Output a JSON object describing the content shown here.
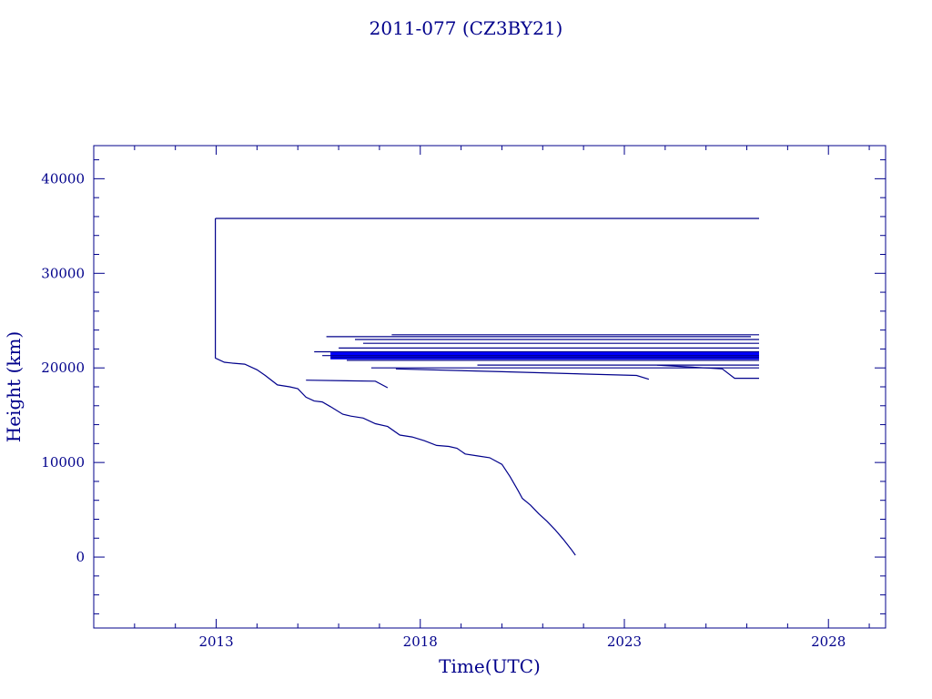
{
  "chart_data": {
    "type": "line",
    "title": "2011-077 (CZ3BY21)",
    "xlabel": "Time(UTC)",
    "ylabel": "Height (km)",
    "xlim": [
      2010.0,
      2029.4
    ],
    "ylim": [
      -7500,
      43500
    ],
    "x_ticks": [
      2013,
      2018,
      2023,
      2028
    ],
    "x_tick_labels": [
      "2013",
      "2018",
      "2023",
      "2028"
    ],
    "y_ticks": [
      0,
      10000,
      20000,
      30000,
      40000
    ],
    "y_tick_labels": [
      "0",
      "10000",
      "20000",
      "30000",
      "40000"
    ],
    "x_minor_step": 1,
    "y_minor_step": 2000,
    "grid": false,
    "line_color": "#00008b",
    "dense_color": "#0000ff",
    "series": [
      {
        "x": [
          2012.98,
          2013.0,
          2013.2,
          2013.4,
          2013.7,
          2014.0,
          2014.2,
          2014.5,
          2014.8,
          2015.0,
          2015.2,
          2015.4,
          2015.6,
          2015.8,
          2016.1,
          2016.3,
          2016.6,
          2016.9,
          2017.2,
          2017.5,
          2017.8,
          2018.1,
          2018.4,
          2018.7,
          2018.9,
          2019.1,
          2019.4,
          2019.7,
          2020.0,
          2020.2,
          2020.4,
          2020.5,
          2020.7,
          2020.9,
          2021.1,
          2021.3,
          2021.5,
          2021.7,
          2021.8
        ],
        "y": [
          21000,
          21000,
          20600,
          20500,
          20400,
          19800,
          19200,
          18200,
          18000,
          17800,
          16900,
          16500,
          16400,
          15900,
          15100,
          14900,
          14700,
          14100,
          13800,
          12900,
          12700,
          12300,
          11800,
          11700,
          11500,
          10900,
          10700,
          10500,
          9800,
          8500,
          7000,
          6200,
          5500,
          4600,
          3800,
          2900,
          1900,
          800,
          200
        ]
      },
      {
        "x": [
          2012.98,
          2012.98
        ],
        "y": [
          21000,
          35800
        ]
      },
      {
        "x": [
          2012.98,
          2026.3
        ],
        "y": [
          35800,
          35800
        ]
      },
      {
        "x": [
          2015.2,
          2016.9,
          2017.2
        ],
        "y": [
          18700,
          18600,
          17900
        ]
      },
      {
        "x": [
          2017.4,
          2020.0,
          2023.3,
          2023.6
        ],
        "y": [
          19900,
          19600,
          19200,
          18800
        ]
      },
      {
        "x": [
          2015.7,
          2026.1
        ],
        "y": [
          23300,
          23300
        ]
      },
      {
        "x": [
          2016.4,
          2026.3
        ],
        "y": [
          23000,
          23000
        ]
      },
      {
        "x": [
          2016.6,
          2026.3
        ],
        "y": [
          22600,
          22600
        ]
      },
      {
        "x": [
          2016.0,
          2026.3
        ],
        "y": [
          22100,
          22100
        ]
      },
      {
        "x": [
          2015.4,
          2026.3
        ],
        "y": [
          21700,
          21700
        ]
      },
      {
        "x": [
          2015.6,
          2026.3
        ],
        "y": [
          21300,
          21300
        ]
      },
      {
        "x": [
          2015.8,
          2026.3
        ],
        "y": [
          21100,
          21100
        ]
      },
      {
        "x": [
          2016.2,
          2026.3
        ],
        "y": [
          20800,
          20800
        ]
      },
      {
        "x": [
          2019.4,
          2026.3
        ],
        "y": [
          20300,
          20300
        ]
      },
      {
        "x": [
          2023.8,
          2025.4,
          2025.7,
          2026.3
        ],
        "y": [
          20300,
          19900,
          18900,
          18900
        ]
      },
      {
        "x": [
          2016.8,
          2026.3
        ],
        "y": [
          20000,
          20000
        ]
      },
      {
        "x": [
          2017.3,
          2026.3
        ],
        "y": [
          23500,
          23500
        ]
      }
    ],
    "dense_band": {
      "x_start": 2015.8,
      "x_end": 2026.3,
      "y_low": 20900,
      "y_high": 21700
    }
  }
}
